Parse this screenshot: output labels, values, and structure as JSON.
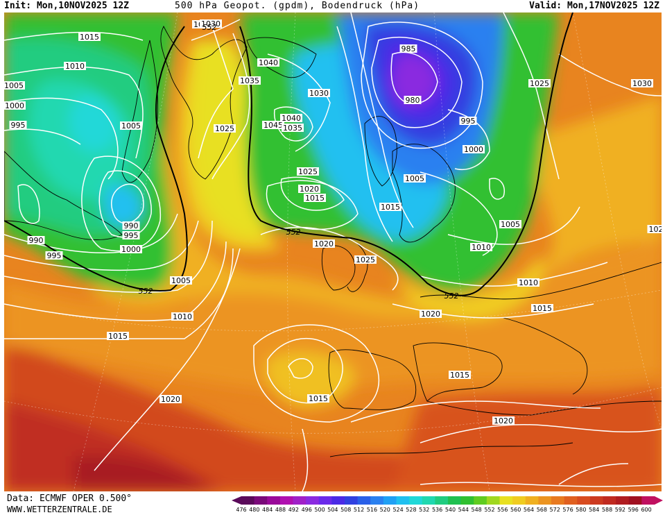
{
  "header": {
    "init": "Init: Mon,10NOV2025 12Z",
    "title": "500 hPa Geopot. (gpdm), Bodendruck (hPa)",
    "valid": "Valid: Mon,17NOV2025 12Z"
  },
  "footer": {
    "data_source": "Data: ECMWF OPER 0.500°",
    "website": "WWW.WETTERZENTRALE.DE"
  },
  "colorbar": {
    "values": [
      "476",
      "480",
      "484",
      "488",
      "492",
      "496",
      "500",
      "504",
      "508",
      "512",
      "516",
      "520",
      "524",
      "528",
      "532",
      "536",
      "540",
      "544",
      "548",
      "552",
      "556",
      "560",
      "564",
      "568",
      "572",
      "576",
      "580",
      "584",
      "588",
      "592",
      "596",
      "600"
    ],
    "colors": [
      "#5a0a5a",
      "#7a0a7a",
      "#9a0a9a",
      "#b010b0",
      "#a020c8",
      "#8a2ae0",
      "#6a2aea",
      "#4a2ae6",
      "#3040e0",
      "#2a60e8",
      "#2a80f0",
      "#20a0f4",
      "#20c0f0",
      "#20d8d8",
      "#20d8b0",
      "#20cc80",
      "#20c050",
      "#30c030",
      "#60cc20",
      "#a0d820",
      "#e8e020",
      "#f0cc20",
      "#f0b020",
      "#ec9420",
      "#e87a20",
      "#e06020",
      "#d84c20",
      "#cc3a20",
      "#c02a20",
      "#b01c20",
      "#a01020",
      "#c01060"
    ]
  },
  "pressure_labels": [
    {
      "text": "1030"
    },
    {
      "text": "1015"
    },
    {
      "text": "1010"
    },
    {
      "text": "1005"
    },
    {
      "text": "1000"
    },
    {
      "text": "995"
    },
    {
      "text": "1005"
    },
    {
      "text": "990"
    },
    {
      "text": "995"
    },
    {
      "text": "1000"
    },
    {
      "text": "990"
    },
    {
      "text": "995"
    },
    {
      "text": "1005"
    },
    {
      "text": "1010"
    },
    {
      "text": "1015"
    },
    {
      "text": "1020"
    },
    {
      "text": "1030"
    },
    {
      "text": "1025"
    },
    {
      "text": "1035"
    },
    {
      "text": "1040"
    },
    {
      "text": "1030"
    },
    {
      "text": "1040"
    },
    {
      "text": "1045"
    },
    {
      "text": "1035"
    },
    {
      "text": "1025"
    },
    {
      "text": "1020"
    },
    {
      "text": "1015"
    },
    {
      "text": "1020"
    },
    {
      "text": "1025"
    },
    {
      "text": "985"
    },
    {
      "text": "980"
    },
    {
      "text": "995"
    },
    {
      "text": "1000"
    },
    {
      "text": "1005"
    },
    {
      "text": "1015"
    },
    {
      "text": "1005"
    },
    {
      "text": "1010"
    },
    {
      "text": "1025"
    },
    {
      "text": "1030"
    },
    {
      "text": "1010"
    },
    {
      "text": "1015"
    },
    {
      "text": "1020"
    },
    {
      "text": "1015"
    },
    {
      "text": "1015"
    },
    {
      "text": "1020"
    },
    {
      "text": "1020"
    },
    {
      "text": "1015"
    },
    {
      "text": "102"
    }
  ],
  "geopotential_labels": [
    {
      "text": "552"
    },
    {
      "text": "552"
    },
    {
      "text": "552"
    },
    {
      "text": "552"
    }
  ]
}
